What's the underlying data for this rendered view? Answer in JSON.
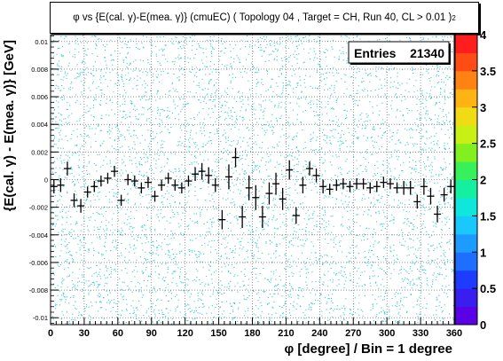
{
  "title": "φ vs {E(cal. γ)-E(mea. γ)} (cmuEC) ( Topology 04 , Target = CH, Run 40, CL > 0.01 )",
  "title_sub": "2",
  "stats": {
    "label": "Entries",
    "value": "21340"
  },
  "chart_data": {
    "type": "scatter",
    "title": "φ vs {E(cal. γ)-E(mea. γ)} (cmuEC) ( Topology 04 , Target = CH2, Run 40, CL > 0.01 )",
    "xlabel": "φ [degree] / Bin = 1 degree",
    "ylabel": "{E(cal. γ) - E(mea. γ)} [GeV]",
    "xlim": [
      0,
      360
    ],
    "ylim": [
      -0.0105,
      0.0105
    ],
    "x_ticks": [
      "0",
      "30",
      "60",
      "90",
      "120",
      "150",
      "180",
      "210",
      "240",
      "270",
      "300",
      "330",
      "360"
    ],
    "y_ticks": [
      "-0.01",
      "-0.008",
      "-0.006",
      "-0.004",
      "-0.002",
      "0",
      "0.002",
      "0.004",
      "0.006",
      "0.008",
      "0.01"
    ],
    "grid": true,
    "z_colorbar": {
      "min": 0,
      "max": 4,
      "ticks": [
        "0",
        "0.5",
        "1",
        "1.5",
        "2",
        "2.5",
        "3",
        "3.5",
        "4"
      ]
    },
    "profile_points": [
      {
        "x": 3,
        "y": -0.0005,
        "err": 0.0005
      },
      {
        "x": 9,
        "y": -0.0004,
        "err": 0.0005
      },
      {
        "x": 15,
        "y": 0.0008,
        "err": 0.0005
      },
      {
        "x": 21,
        "y": -0.0015,
        "err": 0.0005
      },
      {
        "x": 27,
        "y": -0.0019,
        "err": 0.0005
      },
      {
        "x": 33,
        "y": -0.0009,
        "err": 0.0004
      },
      {
        "x": 39,
        "y": -0.0005,
        "err": 0.0004
      },
      {
        "x": 45,
        "y": -0.0001,
        "err": 0.0004
      },
      {
        "x": 51,
        "y": 0.0001,
        "err": 0.0004
      },
      {
        "x": 57,
        "y": 0.0006,
        "err": 0.0004
      },
      {
        "x": 63,
        "y": -0.0015,
        "err": 0.0004
      },
      {
        "x": 69,
        "y": 0.0,
        "err": 0.0004
      },
      {
        "x": 75,
        "y": -0.0001,
        "err": 0.0004
      },
      {
        "x": 81,
        "y": -0.0006,
        "err": 0.0004
      },
      {
        "x": 87,
        "y": -0.0002,
        "err": 0.0004
      },
      {
        "x": 93,
        "y": -0.0012,
        "err": 0.0004
      },
      {
        "x": 99,
        "y": -0.0004,
        "err": 0.0004
      },
      {
        "x": 105,
        "y": 0.0001,
        "err": 0.0004
      },
      {
        "x": 111,
        "y": -0.0004,
        "err": 0.0004
      },
      {
        "x": 117,
        "y": -0.0006,
        "err": 0.0004
      },
      {
        "x": 123,
        "y": -0.0001,
        "err": 0.0004
      },
      {
        "x": 129,
        "y": 0.0004,
        "err": 0.0005
      },
      {
        "x": 135,
        "y": 0.0006,
        "err": 0.0006
      },
      {
        "x": 141,
        "y": 0.0003,
        "err": 0.0006
      },
      {
        "x": 147,
        "y": -0.0004,
        "err": 0.0005
      },
      {
        "x": 153,
        "y": -0.0029,
        "err": 0.0007
      },
      {
        "x": 159,
        "y": 0.0002,
        "err": 0.0009
      },
      {
        "x": 165,
        "y": 0.0016,
        "err": 0.0007
      },
      {
        "x": 171,
        "y": -0.0027,
        "err": 0.0008
      },
      {
        "x": 177,
        "y": -0.0006,
        "err": 0.0009
      },
      {
        "x": 183,
        "y": -0.0013,
        "err": 0.0009
      },
      {
        "x": 189,
        "y": -0.0027,
        "err": 0.0008
      },
      {
        "x": 195,
        "y": -0.001,
        "err": 0.0008
      },
      {
        "x": 201,
        "y": -0.0003,
        "err": 0.0008
      },
      {
        "x": 207,
        "y": -0.0014,
        "err": 0.0008
      },
      {
        "x": 213,
        "y": 0.0007,
        "err": 0.0007
      },
      {
        "x": 219,
        "y": -0.0026,
        "err": 0.0006
      },
      {
        "x": 225,
        "y": -0.0004,
        "err": 0.0006
      },
      {
        "x": 231,
        "y": 0.0008,
        "err": 0.0005
      },
      {
        "x": 237,
        "y": 0.0003,
        "err": 0.0005
      },
      {
        "x": 243,
        "y": -0.0005,
        "err": 0.0005
      },
      {
        "x": 249,
        "y": -0.0007,
        "err": 0.0004
      },
      {
        "x": 255,
        "y": -0.0004,
        "err": 0.0004
      },
      {
        "x": 261,
        "y": -0.0003,
        "err": 0.0004
      },
      {
        "x": 267,
        "y": -0.0005,
        "err": 0.0004
      },
      {
        "x": 273,
        "y": -0.0003,
        "err": 0.0004
      },
      {
        "x": 279,
        "y": -0.0003,
        "err": 0.0004
      },
      {
        "x": 285,
        "y": -0.0006,
        "err": 0.0004
      },
      {
        "x": 291,
        "y": -0.0005,
        "err": 0.0004
      },
      {
        "x": 297,
        "y": -0.0002,
        "err": 0.0004
      },
      {
        "x": 303,
        "y": -0.0003,
        "err": 0.0004
      },
      {
        "x": 309,
        "y": -0.0006,
        "err": 0.0004
      },
      {
        "x": 315,
        "y": -0.0006,
        "err": 0.0005
      },
      {
        "x": 321,
        "y": -0.0006,
        "err": 0.0005
      },
      {
        "x": 327,
        "y": -0.0016,
        "err": 0.0005
      },
      {
        "x": 333,
        "y": -0.0005,
        "err": 0.0006
      },
      {
        "x": 339,
        "y": -0.0012,
        "err": 0.0006
      },
      {
        "x": 345,
        "y": -0.0025,
        "err": 0.0006
      },
      {
        "x": 351,
        "y": -0.0011,
        "err": 0.0005
      },
      {
        "x": 357,
        "y": -0.0005,
        "err": 0.0005
      }
    ]
  },
  "colors": {
    "scatter": "#33c6d6",
    "grid": "#555555",
    "palette": [
      "#5a00e6",
      "#3a1ef0",
      "#1e3cff",
      "#1e6eff",
      "#1e9bff",
      "#19c8ff",
      "#0fe6dc",
      "#14f0a0",
      "#37f05a",
      "#82f01e",
      "#c8f014",
      "#f0dc14",
      "#ffb414",
      "#ff8214",
      "#ff4b14",
      "#ff1e1e"
    ]
  }
}
